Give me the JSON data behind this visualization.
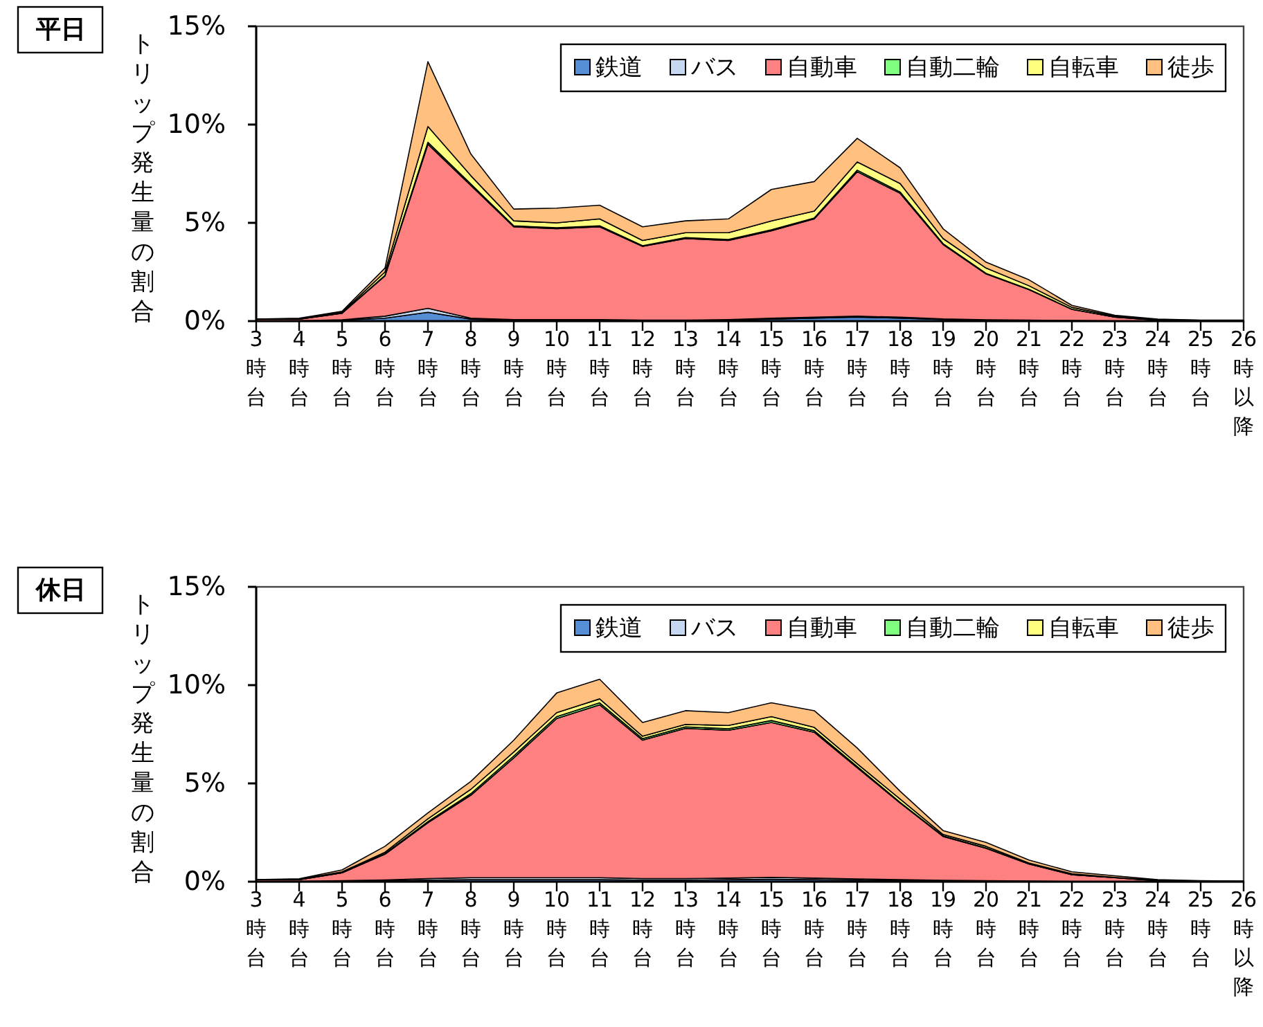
{
  "chart_data": [
    {
      "type": "area",
      "title": "平日",
      "ylabel": "トリップ発生量の割合",
      "stacked": true,
      "legend": "top right",
      "ylim": [
        0,
        15
      ],
      "yticks": [
        {
          "value": 0,
          "label": "0%"
        },
        {
          "value": 5,
          "label": "5%"
        },
        {
          "value": 10,
          "label": "10%"
        },
        {
          "value": 15,
          "label": "15%"
        }
      ],
      "categories": [
        "3時台",
        "4時台",
        "5時台",
        "6時台",
        "7時台",
        "8時台",
        "9時台",
        "10時台",
        "11時台",
        "12時台",
        "13時台",
        "14時台",
        "15時台",
        "16時台",
        "17時台",
        "18時台",
        "19時台",
        "20時台",
        "21時台",
        "22時台",
        "23時台",
        "24時台",
        "25時台",
        "26時以降"
      ],
      "series": [
        {
          "name": "鉄道",
          "color": "#558ed5",
          "values": [
            0.02,
            0.02,
            0.05,
            0.15,
            0.45,
            0.1,
            0.05,
            0.05,
            0.05,
            0.03,
            0.03,
            0.05,
            0.1,
            0.15,
            0.2,
            0.15,
            0.08,
            0.05,
            0.03,
            0.02,
            0.01,
            0,
            0,
            0
          ]
        },
        {
          "name": "バス",
          "color": "#c6d9f1",
          "values": [
            0,
            0,
            0.02,
            0.1,
            0.2,
            0.05,
            0.03,
            0.03,
            0.03,
            0.02,
            0.02,
            0.03,
            0.05,
            0.05,
            0.05,
            0.05,
            0.03,
            0.02,
            0.02,
            0.01,
            0,
            0,
            0,
            0
          ]
        },
        {
          "name": "自動車",
          "color": "#ff8080",
          "values": [
            0.08,
            0.08,
            0.33,
            2.05,
            8.35,
            6.75,
            4.72,
            4.62,
            4.72,
            3.75,
            4.15,
            4.02,
            4.45,
            5.0,
            7.35,
            6.3,
            3.79,
            2.33,
            1.55,
            0.57,
            0.19,
            0.05,
            0.03,
            0.03
          ]
        },
        {
          "name": "自動二輪",
          "color": "#80ff80",
          "values": [
            0,
            0,
            0.01,
            0.03,
            0.1,
            0.08,
            0.05,
            0.05,
            0.05,
            0.04,
            0.05,
            0.05,
            0.05,
            0.05,
            0.08,
            0.07,
            0.04,
            0.03,
            0.02,
            0.01,
            0,
            0,
            0,
            0
          ]
        },
        {
          "name": "自転車",
          "color": "#ffff80",
          "values": [
            0,
            0.02,
            0.04,
            0.17,
            0.8,
            0.42,
            0.25,
            0.25,
            0.35,
            0.26,
            0.25,
            0.35,
            0.45,
            0.35,
            0.42,
            0.43,
            0.26,
            0.27,
            0.18,
            0.09,
            0.05,
            0.02,
            0.01,
            0.01
          ]
        },
        {
          "name": "徒歩",
          "color": "#ffc080",
          "values": [
            0,
            0.03,
            0.05,
            0.2,
            3.3,
            1.1,
            0.6,
            0.75,
            0.7,
            0.7,
            0.6,
            0.7,
            1.6,
            1.5,
            1.2,
            0.8,
            0.5,
            0.3,
            0.3,
            0.1,
            0.05,
            0.03,
            0.01,
            0.01
          ]
        }
      ]
    },
    {
      "type": "area",
      "title": "休日",
      "ylabel": "トリップ発生量の割合",
      "stacked": true,
      "legend": "top right",
      "ylim": [
        0,
        15
      ],
      "yticks": [
        {
          "value": 0,
          "label": "0%"
        },
        {
          "value": 5,
          "label": "5%"
        },
        {
          "value": 10,
          "label": "10%"
        },
        {
          "value": 15,
          "label": "15%"
        }
      ],
      "categories": [
        "3時台",
        "4時台",
        "5時台",
        "6時台",
        "7時台",
        "8時台",
        "9時台",
        "10時台",
        "11時台",
        "12時台",
        "13時台",
        "14時台",
        "15時台",
        "16時台",
        "17時台",
        "18時台",
        "19時台",
        "20時台",
        "21時台",
        "22時台",
        "23時台",
        "24時台",
        "25時台",
        "26時以降"
      ],
      "series": [
        {
          "name": "鉄道",
          "color": "#558ed5",
          "values": [
            0.02,
            0.02,
            0.03,
            0.05,
            0.08,
            0.1,
            0.1,
            0.1,
            0.1,
            0.08,
            0.08,
            0.1,
            0.12,
            0.1,
            0.08,
            0.05,
            0.04,
            0.03,
            0.02,
            0.01,
            0,
            0,
            0,
            0
          ]
        },
        {
          "name": "バス",
          "color": "#c6d9f1",
          "values": [
            0,
            0,
            0.02,
            0.04,
            0.08,
            0.1,
            0.1,
            0.1,
            0.1,
            0.08,
            0.08,
            0.08,
            0.1,
            0.08,
            0.06,
            0.05,
            0.03,
            0.02,
            0.01,
            0,
            0,
            0,
            0,
            0
          ]
        },
        {
          "name": "自動車",
          "color": "#ff8080",
          "values": [
            0.08,
            0.08,
            0.4,
            1.31,
            2.84,
            4.2,
            6.1,
            8.1,
            8.8,
            7.04,
            7.64,
            7.52,
            7.88,
            7.42,
            5.66,
            3.9,
            2.23,
            1.65,
            0.87,
            0.34,
            0.2,
            0.05,
            0.03,
            0.01
          ]
        },
        {
          "name": "自動二輪",
          "color": "#80ff80",
          "values": [
            0,
            0,
            0.01,
            0.03,
            0.06,
            0.08,
            0.1,
            0.1,
            0.1,
            0.08,
            0.08,
            0.08,
            0.1,
            0.08,
            0.06,
            0.04,
            0.03,
            0.02,
            0.01,
            0,
            0,
            0,
            0,
            0
          ]
        },
        {
          "name": "自転車",
          "color": "#ffff80",
          "values": [
            0,
            0.02,
            0.04,
            0.07,
            0.14,
            0.22,
            0.2,
            0.2,
            0.2,
            0.12,
            0.12,
            0.17,
            0.2,
            0.17,
            0.14,
            0.16,
            0.07,
            0.08,
            0.04,
            0.05,
            0.02,
            0.01,
            0,
            0
          ]
        },
        {
          "name": "徒歩",
          "color": "#ffc080",
          "values": [
            0,
            0.03,
            0.1,
            0.3,
            0.3,
            0.4,
            0.6,
            1.0,
            1.0,
            0.7,
            0.7,
            0.65,
            0.7,
            0.85,
            0.8,
            0.4,
            0.2,
            0.2,
            0.15,
            0.1,
            0.08,
            0.04,
            0.02,
            0.02
          ]
        }
      ]
    }
  ]
}
